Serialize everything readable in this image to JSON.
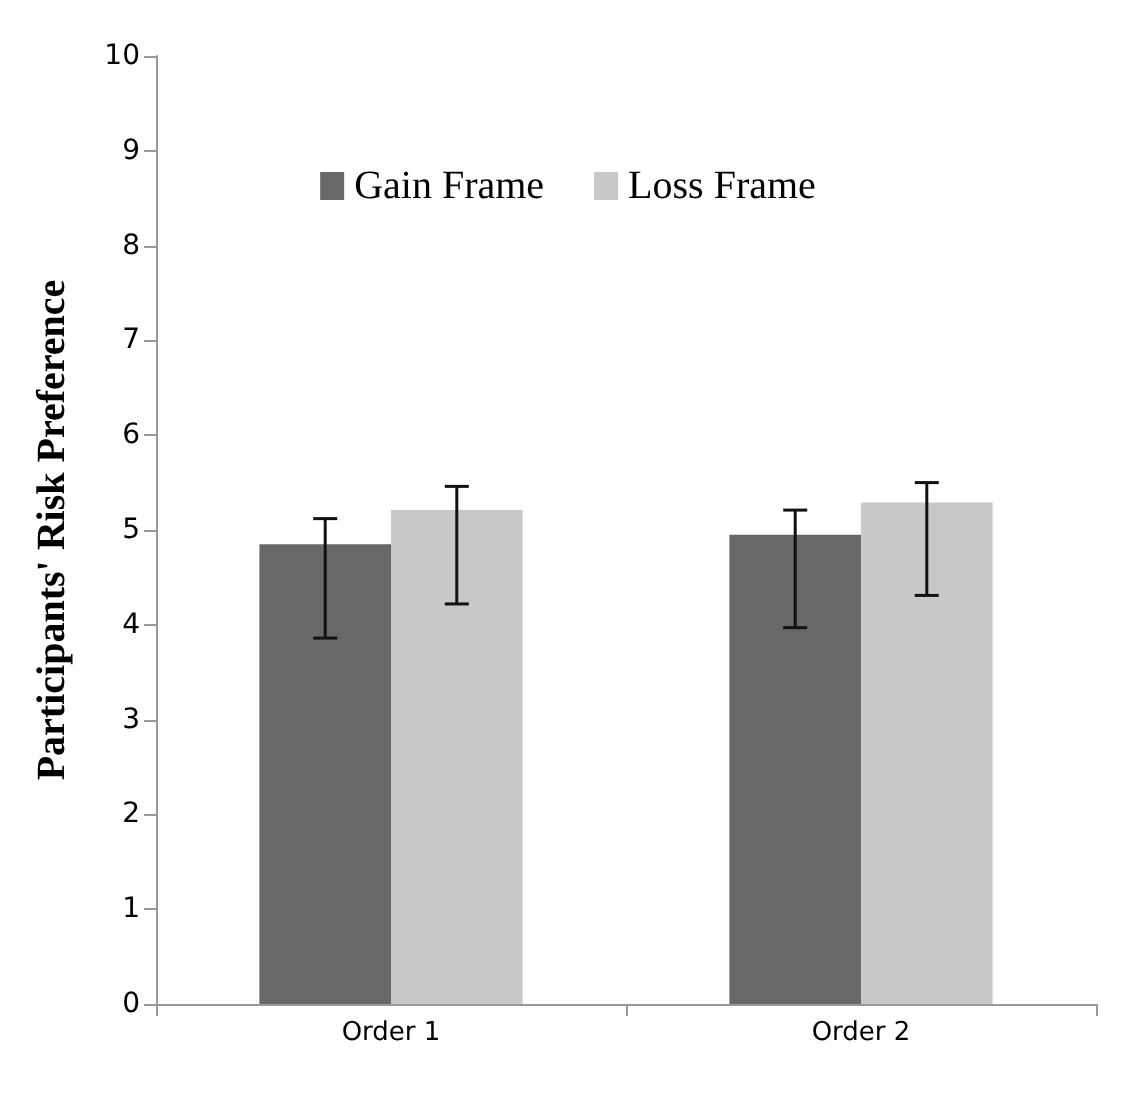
{
  "chart_data": {
    "type": "bar",
    "ylabel": "Participants' Risk Preference",
    "categories": [
      "Order 1",
      "Order 2"
    ],
    "series": [
      {
        "name": "Gain Frame",
        "color": "#686868",
        "values": [
          4.85,
          4.95
        ],
        "errors": [
          [
            3.86,
            5.12
          ],
          [
            3.97,
            5.21
          ]
        ]
      },
      {
        "name": "Loss Frame",
        "color": "#c8c8c8",
        "values": [
          5.21,
          5.29
        ],
        "errors": [
          [
            4.22,
            5.46
          ],
          [
            4.31,
            5.5
          ]
        ]
      }
    ],
    "ylim": [
      0,
      10
    ],
    "yticks": [
      0,
      1,
      2,
      3,
      4,
      5,
      6,
      7,
      8,
      9,
      10
    ],
    "grid": false,
    "legend": "top"
  }
}
